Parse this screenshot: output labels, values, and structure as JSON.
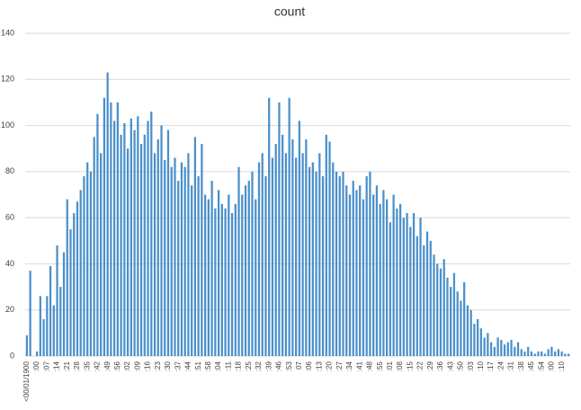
{
  "chart_data": {
    "type": "bar",
    "title": "count",
    "categories": [
      "<00/01/1900",
      null,
      null,
      ":00",
      null,
      null,
      ":07",
      null,
      null,
      ":14",
      null,
      null,
      ":21",
      null,
      null,
      ":28",
      null,
      null,
      ":35",
      null,
      null,
      ":42",
      null,
      null,
      ":49",
      null,
      null,
      ":56",
      null,
      null,
      ":02",
      null,
      null,
      ":09",
      null,
      null,
      ":16",
      null,
      null,
      ":23",
      null,
      null,
      ":30",
      null,
      null,
      ":37",
      null,
      null,
      ":44",
      null,
      null,
      ":51",
      null,
      null,
      ":58",
      null,
      null,
      ":04",
      null,
      null,
      ":11",
      null,
      null,
      ":18",
      null,
      null,
      ":25",
      null,
      null,
      ":32",
      null,
      null,
      ":39",
      null,
      null,
      ":46",
      null,
      null,
      ":53",
      null,
      null,
      "07",
      null,
      null,
      ":06",
      null,
      null,
      ":13",
      null,
      null,
      ":20",
      null,
      null,
      ":27",
      null,
      null,
      ":34",
      null,
      null,
      ":41",
      null,
      null,
      ":48",
      null,
      null,
      ":55",
      null,
      null,
      ":01",
      null,
      null,
      ":08",
      null,
      null,
      ":15",
      null,
      null,
      ":22",
      null,
      null,
      ":29",
      null,
      null,
      ":36",
      null,
      null,
      ":43",
      null,
      null,
      ":50",
      null,
      null,
      ":03",
      null,
      null,
      ":10",
      null,
      null,
      ":17",
      null,
      null,
      ":24",
      null,
      null,
      ":31",
      null,
      null,
      ":38",
      null,
      null,
      ":45",
      null,
      null,
      ":54",
      null,
      null,
      ":00",
      null,
      null,
      ":10",
      null,
      null
    ],
    "values": [
      9,
      37,
      0,
      2,
      26,
      16,
      26,
      39,
      22,
      48,
      30,
      45,
      68,
      55,
      62,
      67,
      72,
      78,
      84,
      80,
      95,
      105,
      88,
      112,
      123,
      110,
      102,
      110,
      96,
      101,
      90,
      103,
      98,
      104,
      92,
      96,
      102,
      106,
      88,
      94,
      100,
      85,
      98,
      82,
      86,
      76,
      84,
      82,
      88,
      74,
      95,
      78,
      92,
      70,
      68,
      76,
      64,
      72,
      66,
      64,
      70,
      62,
      66,
      82,
      70,
      74,
      76,
      80,
      68,
      84,
      88,
      78,
      112,
      86,
      92,
      110,
      96,
      88,
      112,
      94,
      86,
      102,
      88,
      94,
      82,
      84,
      80,
      88,
      78,
      96,
      93,
      84,
      80,
      78,
      80,
      74,
      70,
      76,
      72,
      74,
      68,
      78,
      80,
      70,
      74,
      66,
      72,
      68,
      58,
      70,
      64,
      66,
      60,
      62,
      56,
      62,
      52,
      60,
      48,
      54,
      50,
      44,
      40,
      38,
      42,
      34,
      30,
      36,
      28,
      24,
      32,
      22,
      20,
      14,
      16,
      12,
      8,
      10,
      6,
      4,
      8,
      7,
      5,
      6,
      7,
      4,
      6,
      3,
      2,
      4,
      2,
      1,
      2,
      2,
      1,
      3,
      4,
      2,
      3,
      2,
      1,
      1
    ],
    "color": "#4a8fca",
    "ylim": [
      0,
      140
    ],
    "yticks": [
      0,
      20,
      40,
      60,
      80,
      100,
      120,
      140
    ],
    "grid": true
  }
}
